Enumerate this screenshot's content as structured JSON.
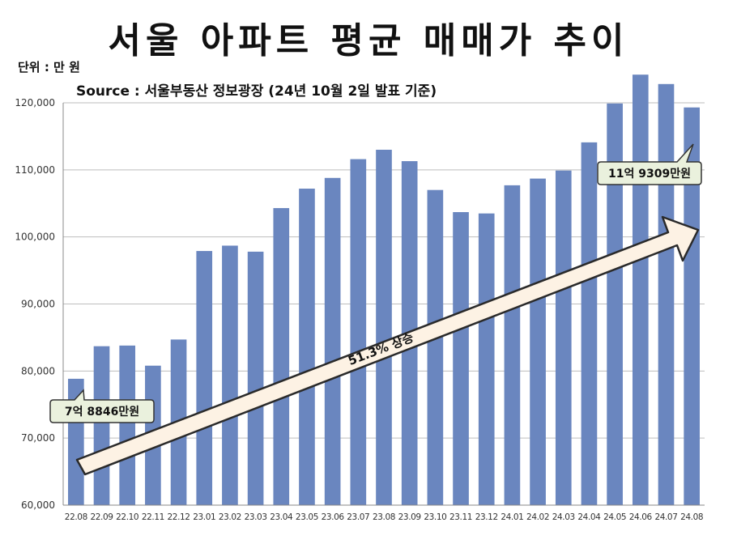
{
  "chart_data": {
    "type": "bar",
    "title": "서울 아파트 평균 매매가 추이",
    "unit_label": "단위 : 만 원",
    "source": "Source :  서울부동산 정보광장  (24년 10월 2일 발표 기준)",
    "categories": [
      "22.08",
      "22.09",
      "22.10",
      "22.11",
      "22.12",
      "23.01",
      "23.02",
      "23.03",
      "23.04",
      "23.05",
      "23.06",
      "23.07",
      "23.08",
      "23.09",
      "23.10",
      "23.11",
      "23.12",
      "24.01",
      "24.02",
      "24.03",
      "24.04",
      "24.05",
      "24.06",
      "24.07",
      "24.08"
    ],
    "values": [
      78846,
      83700,
      83800,
      80800,
      84700,
      97900,
      98700,
      97800,
      104300,
      107200,
      108800,
      111600,
      113000,
      111300,
      107000,
      103700,
      103500,
      107700,
      108700,
      109900,
      114100,
      119900,
      124200,
      122800,
      119309
    ],
    "ylim": [
      60000,
      120000
    ],
    "yticks": [
      "60,000",
      "70,000",
      "80,000",
      "90,000",
      "100,000",
      "110,000",
      "120,000"
    ],
    "bar_color": "#6a86bf",
    "grid": true,
    "annotations": {
      "start_label": "7억 8846만원",
      "end_label": "11억 9309만원",
      "trend_label": "51.3% 상승"
    }
  }
}
